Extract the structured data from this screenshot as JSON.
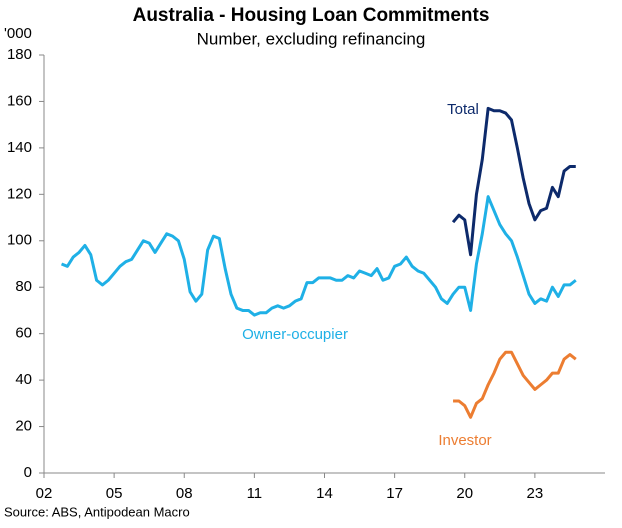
{
  "chart_data": {
    "type": "line",
    "title": "Australia - Housing Loan Commitments",
    "subtitle": "Number, excluding refinancing",
    "y_unit": "'000",
    "source": "Source: ABS, Antipodean Macro",
    "xlim": [
      2002,
      2026
    ],
    "xticks": [
      {
        "value": 2002,
        "label": "02"
      },
      {
        "value": 2005,
        "label": "05"
      },
      {
        "value": 2008,
        "label": "08"
      },
      {
        "value": 2011,
        "label": "11"
      },
      {
        "value": 2014,
        "label": "14"
      },
      {
        "value": 2017,
        "label": "17"
      },
      {
        "value": 2020,
        "label": "20"
      },
      {
        "value": 2023,
        "label": "23"
      }
    ],
    "ylim": [
      0,
      180
    ],
    "yticks": [
      0,
      20,
      40,
      60,
      80,
      100,
      120,
      140,
      160,
      180
    ],
    "series": [
      {
        "name": "Total",
        "color": "#0d2a6b",
        "x": [
          2019.5,
          2019.75,
          2020,
          2020.25,
          2020.5,
          2020.75,
          2021,
          2021.25,
          2021.5,
          2021.75,
          2022,
          2022.25,
          2022.5,
          2022.75,
          2023,
          2023.25,
          2023.5,
          2023.75,
          2024,
          2024.25,
          2024.5,
          2024.75
        ],
        "values": [
          108,
          111,
          109,
          94,
          120,
          135,
          157,
          156,
          156,
          155,
          152,
          140,
          127,
          116,
          109,
          113,
          114,
          123,
          119,
          130,
          132,
          132
        ]
      },
      {
        "name": "Owner-occupier",
        "color": "#1fb0e6",
        "x": [
          2002.75,
          2003,
          2003.25,
          2003.5,
          2003.75,
          2004,
          2004.25,
          2004.5,
          2004.75,
          2005,
          2005.25,
          2005.5,
          2005.75,
          2006,
          2006.25,
          2006.5,
          2006.75,
          2007,
          2007.25,
          2007.5,
          2007.75,
          2008,
          2008.25,
          2008.5,
          2008.75,
          2009,
          2009.25,
          2009.5,
          2009.75,
          2010,
          2010.25,
          2010.5,
          2010.75,
          2011,
          2011.25,
          2011.5,
          2011.75,
          2012,
          2012.25,
          2012.5,
          2012.75,
          2013,
          2013.25,
          2013.5,
          2013.75,
          2014,
          2014.25,
          2014.5,
          2014.75,
          2015,
          2015.25,
          2015.5,
          2015.75,
          2016,
          2016.25,
          2016.5,
          2016.75,
          2017,
          2017.25,
          2017.5,
          2017.75,
          2018,
          2018.25,
          2018.5,
          2018.75,
          2019,
          2019.25,
          2019.5,
          2019.75,
          2020,
          2020.25,
          2020.5,
          2020.75,
          2021,
          2021.25,
          2021.5,
          2021.75,
          2022,
          2022.25,
          2022.5,
          2022.75,
          2023,
          2023.25,
          2023.5,
          2023.75,
          2024,
          2024.25,
          2024.5,
          2024.75
        ],
        "values": [
          90,
          89,
          93,
          95,
          98,
          94,
          83,
          81,
          83,
          86,
          89,
          91,
          92,
          96,
          100,
          99,
          95,
          99,
          103,
          102,
          100,
          92,
          78,
          74,
          77,
          96,
          102,
          101,
          88,
          77,
          71,
          70,
          70,
          68,
          69,
          69,
          71,
          72,
          71,
          72,
          74,
          75,
          82,
          82,
          84,
          84,
          84,
          83,
          83,
          85,
          84,
          87,
          86,
          85,
          88,
          83,
          84,
          89,
          90,
          93,
          89,
          87,
          86,
          83,
          80,
          75,
          73,
          77,
          80,
          80,
          70,
          90,
          103,
          119,
          113,
          107,
          103,
          100,
          93,
          85,
          77,
          73,
          75,
          74,
          80,
          76,
          81,
          81,
          83
        ]
      },
      {
        "name": "Investor",
        "color": "#ec7d31",
        "x": [
          2019.5,
          2019.75,
          2020,
          2020.25,
          2020.5,
          2020.75,
          2021,
          2021.25,
          2021.5,
          2021.75,
          2022,
          2022.25,
          2022.5,
          2022.75,
          2023,
          2023.25,
          2023.5,
          2023.75,
          2024,
          2024.25,
          2024.5,
          2024.75
        ],
        "values": [
          31,
          31,
          29,
          24,
          30,
          32,
          38,
          43,
          49,
          52,
          52,
          47,
          42,
          39,
          36,
          38,
          40,
          43,
          43,
          49,
          51,
          49
        ]
      }
    ]
  }
}
